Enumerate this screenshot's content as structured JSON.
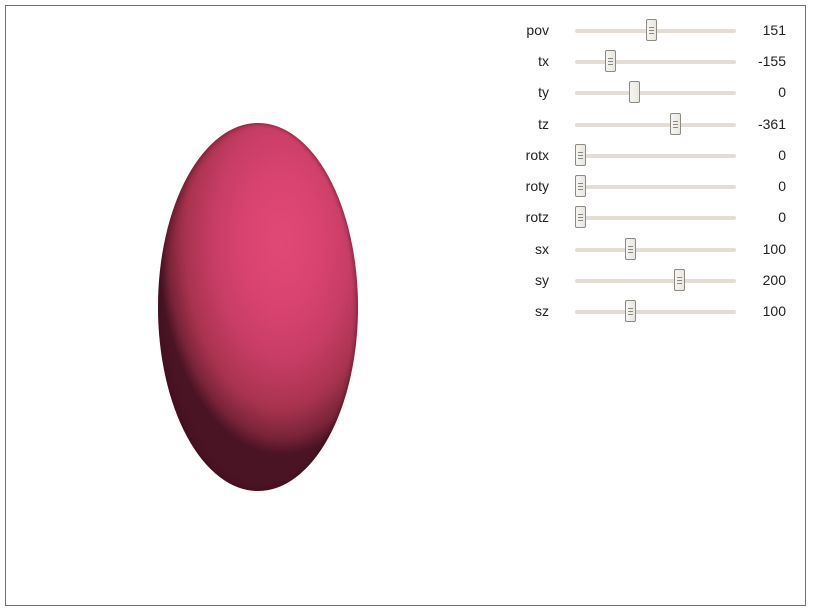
{
  "viewer": {
    "shape": "ellipsoid",
    "color": "#d9446f",
    "border_color": "#a44ea6"
  },
  "sliders": [
    {
      "label": "pov",
      "value": "151",
      "position": 0.48
    },
    {
      "label": "tx",
      "value": "-155",
      "position": 0.225
    },
    {
      "label": "ty",
      "value": "0",
      "position": 0.37
    },
    {
      "label": "tz",
      "value": "-361",
      "position": 0.625
    },
    {
      "label": "rotx",
      "value": "0",
      "position": 0.04
    },
    {
      "label": "roty",
      "value": "0",
      "position": 0.04
    },
    {
      "label": "rotz",
      "value": "0",
      "position": 0.04
    },
    {
      "label": "sx",
      "value": "100",
      "position": 0.345
    },
    {
      "label": "sy",
      "value": "200",
      "position": 0.65
    },
    {
      "label": "sz",
      "value": "100",
      "position": 0.345
    }
  ]
}
